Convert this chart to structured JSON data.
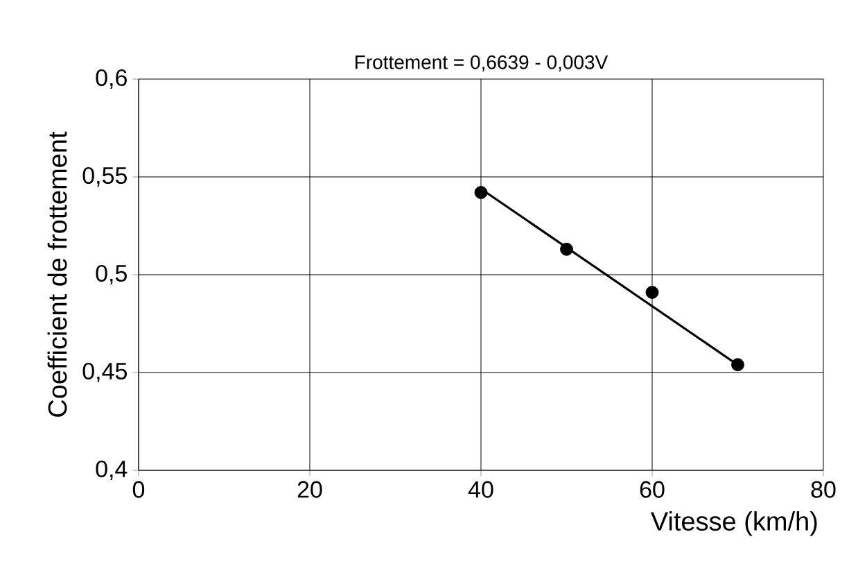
{
  "chart_data": {
    "type": "scatter",
    "title": "Frottement = 0,6639 - 0,003V",
    "xlabel": "Vitesse (km/h)",
    "ylabel": "Coefficient de frottement",
    "xlim": [
      0,
      80
    ],
    "ylim": [
      0.4,
      0.6
    ],
    "xticks": [
      0,
      20,
      40,
      60,
      80
    ],
    "yticks": [
      {
        "value": 0.4,
        "label": "0,4"
      },
      {
        "value": 0.45,
        "label": "0,45"
      },
      {
        "value": 0.5,
        "label": "0,5"
      },
      {
        "value": 0.55,
        "label": "0,55"
      },
      {
        "value": 0.6,
        "label": "0,6"
      }
    ],
    "grid": true,
    "marker": "circle",
    "x": [
      40,
      50,
      60,
      70
    ],
    "series": [
      {
        "color": "#000000",
        "values": [
          0.542,
          0.513,
          0.491,
          0.454
        ]
      },
      {
        "type": "line",
        "color": "#000000",
        "marker": "none",
        "x": [
          40,
          70
        ],
        "values": [
          0.5439,
          0.4539
        ]
      }
    ]
  }
}
